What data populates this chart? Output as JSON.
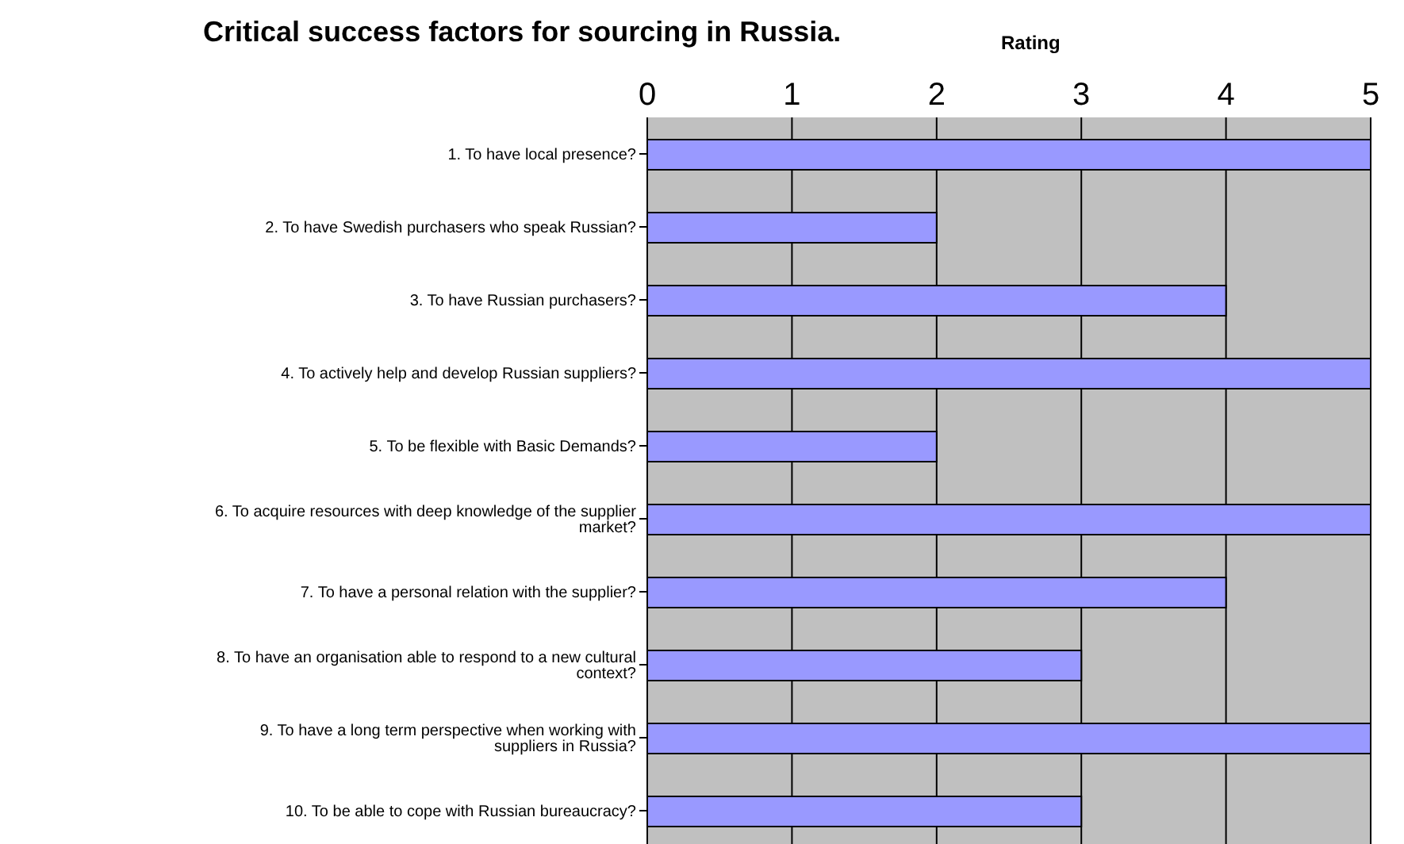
{
  "chart_data": {
    "type": "bar",
    "orientation": "horizontal",
    "title": "Critical success factors for sourcing in Russia.",
    "xlabel": "Rating",
    "categories": [
      "1. To have local presence?",
      "2. To have Swedish purchasers who speak Russian?",
      "3. To have Russian purchasers?",
      "4. To actively help and develop Russian suppliers?",
      "5. To be flexible with Basic Demands?",
      "6. To acquire resources with deep knowledge of the supplier market?",
      "7. To have a personal relation with the supplier?",
      "8. To have an organisation able to respond to a new cultural context?",
      "9. To have a long term perspective when working with suppliers in Russia?",
      "10. To be able to cope with Russian bureaucracy?"
    ],
    "values": [
      5,
      2,
      4,
      5,
      2,
      5,
      4,
      3,
      5,
      3
    ],
    "color": "#9999ff",
    "xlim": [
      0,
      5
    ],
    "xticks": [
      0,
      1,
      2,
      3,
      4,
      5
    ],
    "grid": "x"
  }
}
